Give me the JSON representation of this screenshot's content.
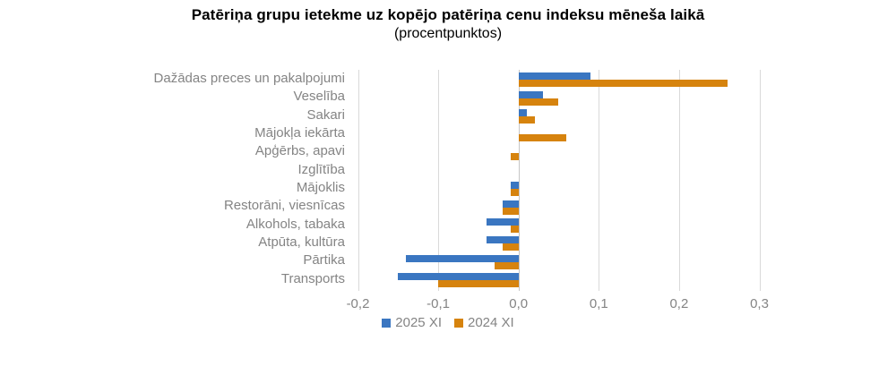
{
  "title": "Patēriņa grupu ietekme uz kopējo patēriņa cenu indeksu mēneša laikā",
  "subtitle": "(procentpunktos)",
  "colors": {
    "series_2025": "#3a76c1",
    "series_2024": "#d6830e",
    "gridline": "#d9d9d9",
    "zero_line": "#c6c6c6",
    "label_text": "#848484",
    "title_text": "#000000",
    "background": "#ffffff"
  },
  "legend": {
    "items": [
      {
        "label": "2025 XI",
        "color": "#3a76c1"
      },
      {
        "label": "2024 XI",
        "color": "#d6830e"
      }
    ]
  },
  "chart_data": {
    "type": "bar",
    "orientation": "horizontal",
    "title": "Patēriņa grupu ietekme uz kopējo patēriņa cenu indeksu mēneša laikā",
    "subtitle": "(procentpunktos)",
    "categories": [
      "Dažādas preces un pakalpojumi",
      "Veselība",
      "Sakari",
      "Mājokļa iekārta",
      "Apģērbs, apavi",
      "Izglītība",
      "Mājoklis",
      "Restorāni, viesnīcas",
      "Alkohols, tabaka",
      "Atpūta, kultūra",
      "Pārtika",
      "Transports"
    ],
    "series": [
      {
        "name": "2025 XI",
        "color": "#3a76c1",
        "values": [
          0.09,
          0.03,
          0.01,
          0.0,
          0.0,
          0.0,
          -0.01,
          -0.02,
          -0.04,
          -0.04,
          -0.14,
          -0.15
        ]
      },
      {
        "name": "2024 XI",
        "color": "#d6830e",
        "values": [
          0.26,
          0.05,
          0.02,
          0.06,
          -0.01,
          0.0,
          -0.01,
          -0.02,
          -0.01,
          -0.02,
          -0.03,
          -0.1
        ]
      }
    ],
    "xlabel": "",
    "ylabel": "",
    "xlim": [
      -0.2,
      0.3
    ],
    "x_tick_values": [
      -0.2,
      -0.1,
      0.0,
      0.1,
      0.2,
      0.3
    ],
    "x_tick_labels": [
      "-0,2",
      "-0,1",
      "0,0",
      "0,1",
      "0,2",
      "0,3"
    ],
    "grid": true,
    "legend_position": "bottom"
  }
}
